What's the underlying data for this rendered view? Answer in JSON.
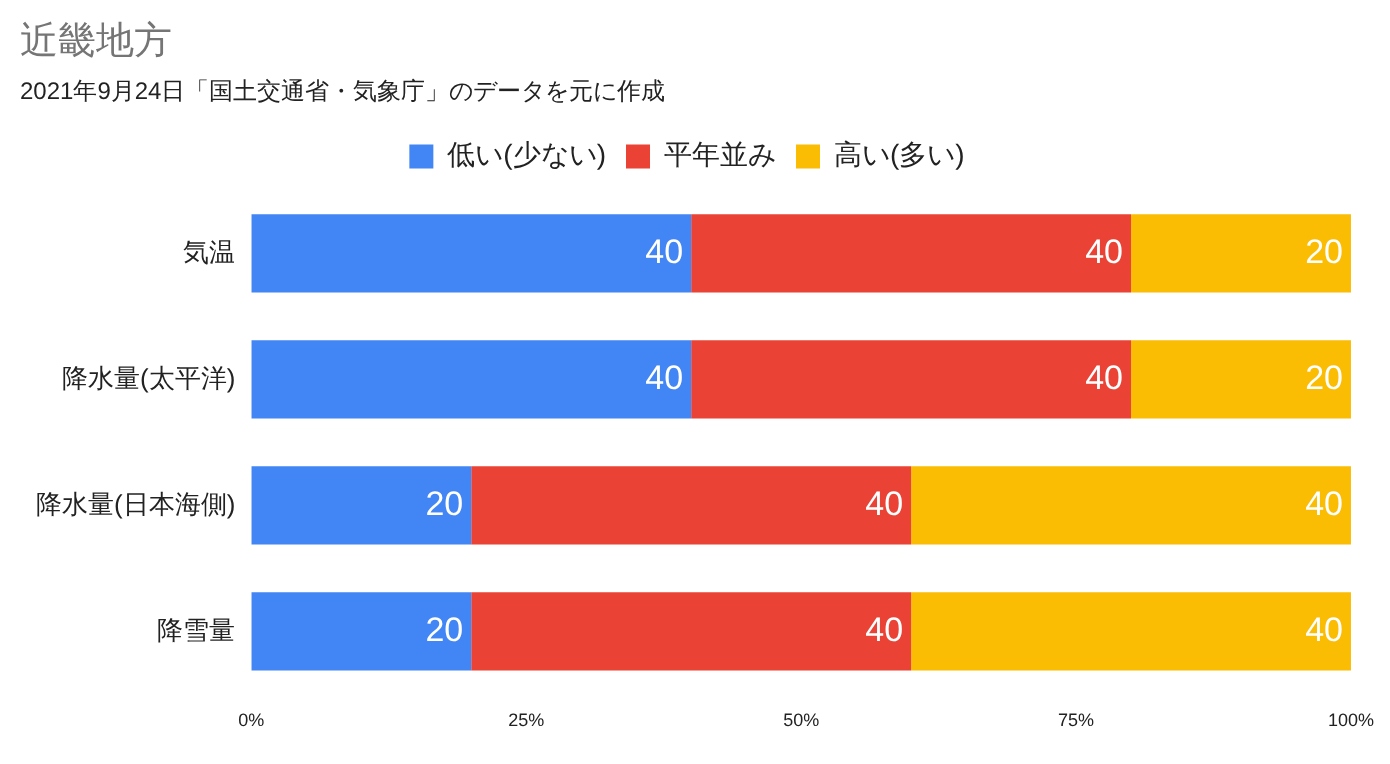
{
  "chart_data": {
    "type": "bar",
    "orientation": "horizontal",
    "stacked": true,
    "title": "近畿地方",
    "subtitle": "2021年9月24日「国土交通省・気象庁」のデータを元に作成",
    "categories": [
      "気温",
      "降水量(太平洋)",
      "降水量(日本海側)",
      "降雪量"
    ],
    "series": [
      {
        "name": "低い(少ない)",
        "color": "#4285f4",
        "values": [
          40,
          40,
          20,
          20
        ]
      },
      {
        "name": "平年並み",
        "color": "#ea4335",
        "values": [
          40,
          40,
          40,
          40
        ]
      },
      {
        "name": "高い(多い)",
        "color": "#fbbc04",
        "values": [
          20,
          20,
          40,
          40
        ]
      }
    ],
    "xlim": [
      0,
      100
    ],
    "xticks": [
      {
        "value": 0,
        "label": "0%"
      },
      {
        "value": 25,
        "label": "25%"
      },
      {
        "value": 50,
        "label": "50%"
      },
      {
        "value": 75,
        "label": "75%"
      },
      {
        "value": 100,
        "label": "100%"
      }
    ],
    "grid": false,
    "legend": "top",
    "data_labels": true
  }
}
